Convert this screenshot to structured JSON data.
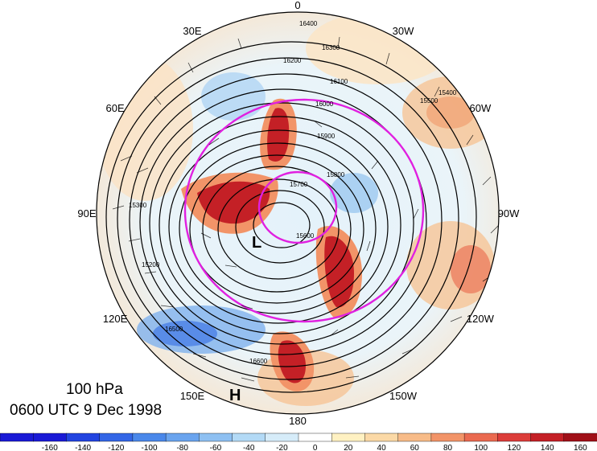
{
  "caption": {
    "level": "100 hPa",
    "time": "0600 UTC 9 Dec 1998"
  },
  "longitude_labels": [
    {
      "text": "0",
      "angle": 0
    },
    {
      "text": "30W",
      "angle": 30
    },
    {
      "text": "60W",
      "angle": 60
    },
    {
      "text": "90W",
      "angle": 90
    },
    {
      "text": "120W",
      "angle": 120
    },
    {
      "text": "150W",
      "angle": 150
    },
    {
      "text": "180",
      "angle": 180
    },
    {
      "text": "150E",
      "angle": 210
    },
    {
      "text": "120E",
      "angle": 240
    },
    {
      "text": "90E",
      "angle": 270
    },
    {
      "text": "60E",
      "angle": 300
    },
    {
      "text": "30E",
      "angle": 330
    }
  ],
  "pressure_centers": [
    {
      "label": "L",
      "kind": "low"
    },
    {
      "label": "H",
      "kind": "high"
    }
  ],
  "contour_labels": [
    "16400",
    "16300",
    "16200",
    "16100",
    "16000",
    "15900",
    "15800",
    "15700",
    "15600",
    "15500",
    "15400",
    "15300",
    "15200",
    "16500",
    "16600"
  ],
  "colorbar": {
    "ticks": [
      -160,
      -140,
      -120,
      -100,
      -80,
      -60,
      -40,
      -20,
      0,
      20,
      40,
      60,
      80,
      100,
      120,
      140,
      160
    ],
    "colors": [
      "#1a1ad6",
      "#2244e0",
      "#3366e6",
      "#4a88ea",
      "#6aa4ee",
      "#8ec0f2",
      "#b3daf6",
      "#d6ecf9",
      "#ffffff",
      "#fff1c2",
      "#fbd9a6",
      "#f7bb88",
      "#f29468",
      "#ea6a50",
      "#dc3d3a",
      "#c42026",
      "#a01018"
    ]
  },
  "colors": {
    "contour": "#000000",
    "jet_outline": "#e020e0",
    "positive_max": "#b81418",
    "negative_max": "#2a5ad8"
  }
}
